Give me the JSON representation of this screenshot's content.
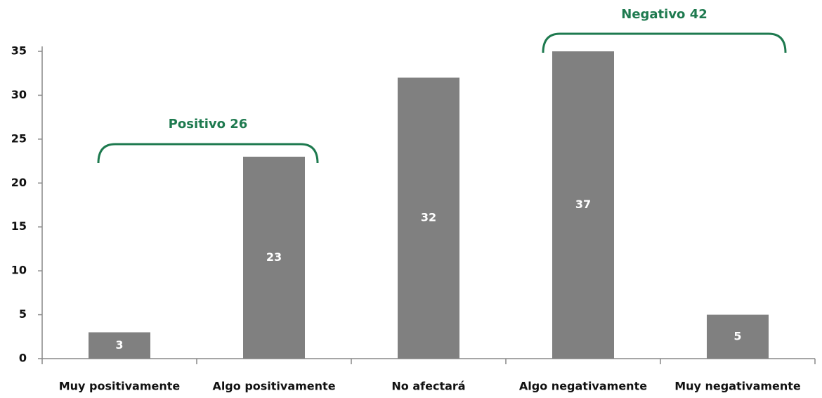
{
  "chart_data": {
    "type": "bar",
    "categories": [
      "Muy positivamente",
      "Algo positivamente",
      "No afectará",
      "Algo negativamente",
      "Muy negativamente"
    ],
    "values": [
      3,
      23,
      32,
      37,
      5
    ],
    "color": "#808080",
    "ylim": [
      0,
      35
    ],
    "yticks": [
      0,
      5,
      10,
      15,
      20,
      25,
      30,
      35
    ],
    "grid": false,
    "annotations": [
      "Positivo 26",
      "Negativo 42"
    ],
    "annotation_color": "#1e7a4f"
  }
}
